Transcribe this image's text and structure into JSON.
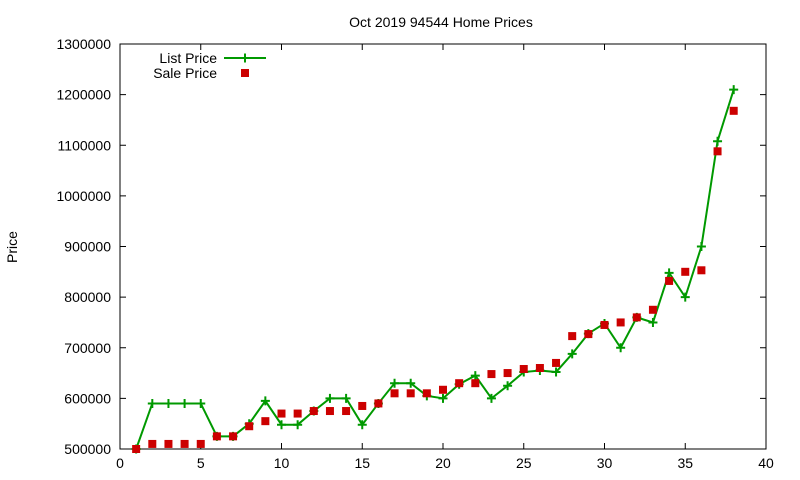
{
  "chart_data": {
    "type": "line",
    "title": "Oct 2019 94544 Home Prices",
    "xlabel": "",
    "ylabel": "Price",
    "xlim": [
      0,
      40
    ],
    "ylim": [
      500000,
      1300000
    ],
    "xticks": [
      "0",
      "5",
      "10",
      "15",
      "20",
      "25",
      "30",
      "35",
      "40"
    ],
    "yticks": [
      "500000",
      "600000",
      "700000",
      "800000",
      "900000",
      "1000000",
      "1100000",
      "1200000",
      "1300000"
    ],
    "grid": false,
    "legend_position": "top-left",
    "x": [
      1,
      2,
      3,
      4,
      5,
      6,
      7,
      8,
      9,
      10,
      11,
      12,
      13,
      14,
      15,
      16,
      17,
      18,
      19,
      20,
      21,
      22,
      23,
      24,
      25,
      26,
      27,
      28,
      29,
      30,
      31,
      32,
      33,
      34,
      35,
      36,
      37,
      38
    ],
    "series": [
      {
        "name": "List Price",
        "style": "line-plus",
        "color": "#009900",
        "values": [
          500000,
          590000,
          590000,
          590000,
          590000,
          525000,
          525000,
          550000,
          595000,
          548000,
          548000,
          575000,
          600000,
          600000,
          548000,
          590000,
          630000,
          630000,
          605000,
          600000,
          628000,
          645000,
          600000,
          625000,
          652000,
          655000,
          652000,
          688000,
          728000,
          748000,
          700000,
          760000,
          750000,
          848000,
          800000,
          900000,
          1108000,
          1210000
        ]
      },
      {
        "name": "Sale Price",
        "style": "square-points",
        "color": "#cc0000",
        "values": [
          500000,
          510000,
          510000,
          510000,
          510000,
          525000,
          525000,
          545000,
          555000,
          570000,
          570000,
          575000,
          575000,
          575000,
          585000,
          590000,
          610000,
          610000,
          610000,
          617000,
          630000,
          630000,
          648000,
          650000,
          658000,
          660000,
          670000,
          723000,
          727000,
          745000,
          750000,
          760000,
          775000,
          832000,
          850000,
          853000,
          1088000,
          1168000
        ]
      }
    ]
  }
}
